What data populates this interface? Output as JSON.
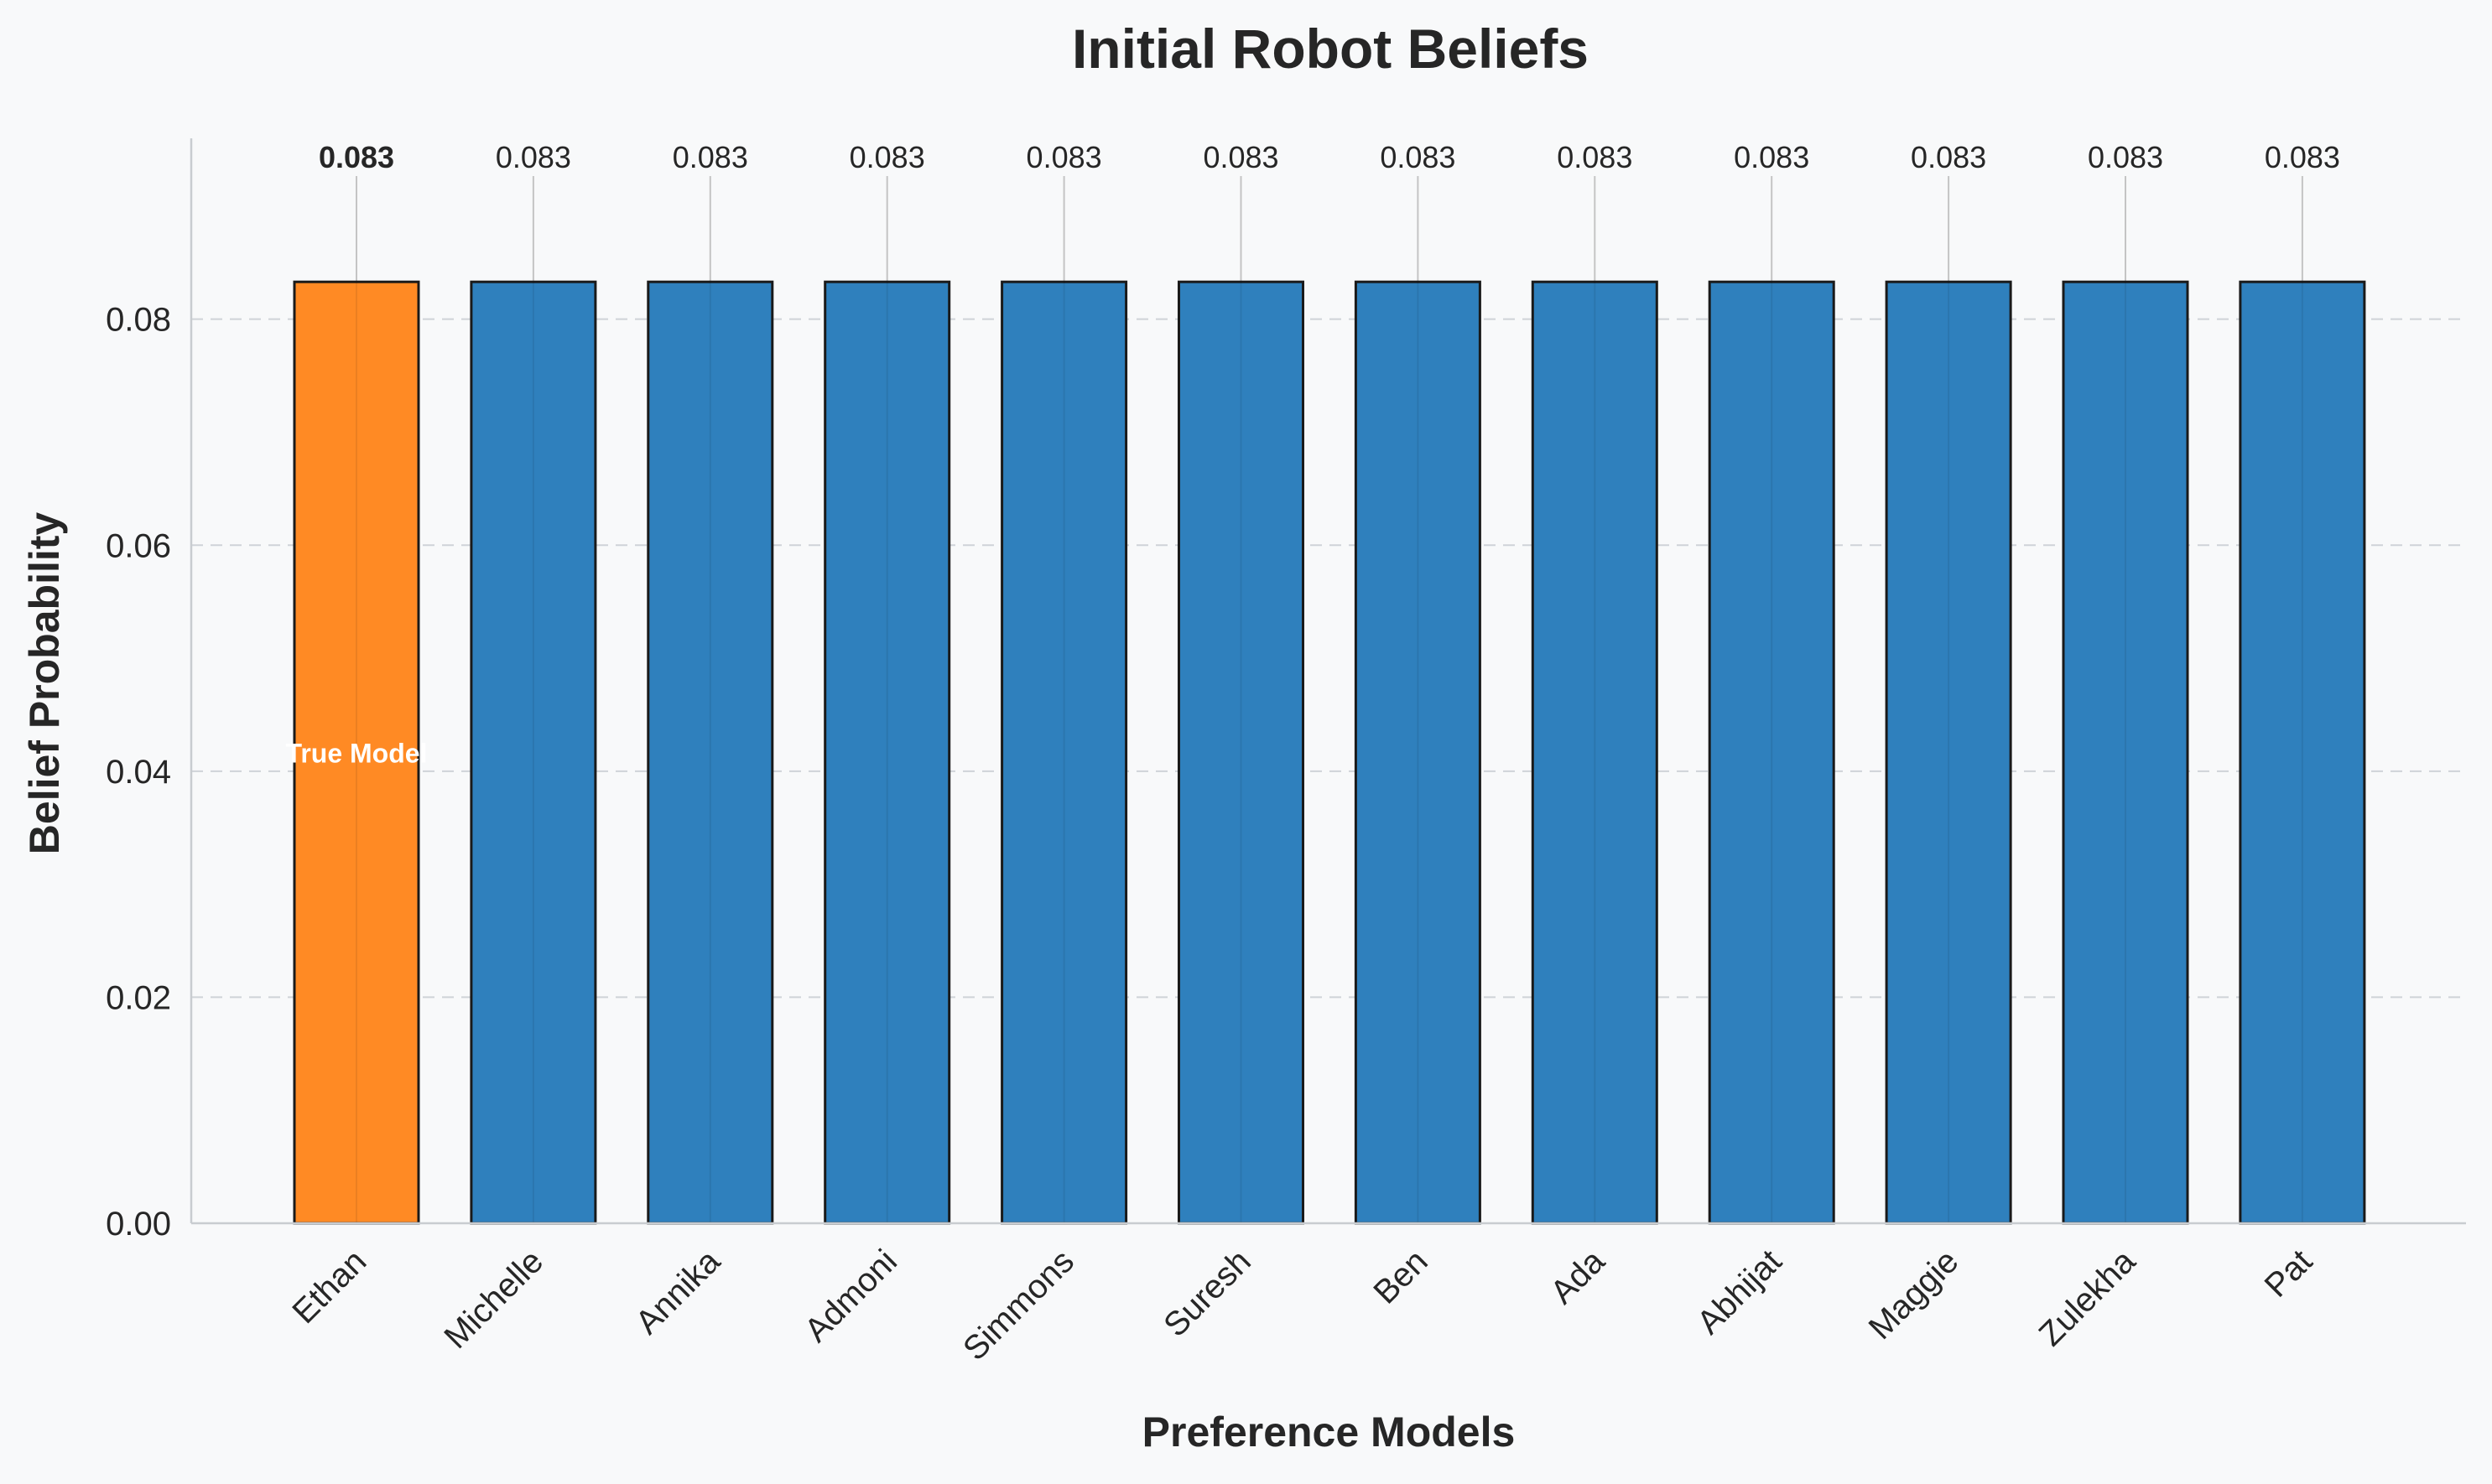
{
  "chart_data": {
    "type": "bar",
    "title": "Initial Robot Beliefs",
    "xlabel": "Preference Models",
    "ylabel": "Belief Probability",
    "categories": [
      "Ethan",
      "Michelle",
      "Annika",
      "Admoni",
      "Simmons",
      "Suresh",
      "Ben",
      "Ada",
      "Abhijat",
      "Maggie",
      "Zulekha",
      "Pat"
    ],
    "values": [
      0.0833,
      0.0833,
      0.0833,
      0.0833,
      0.0833,
      0.0833,
      0.0833,
      0.0833,
      0.0833,
      0.0833,
      0.0833,
      0.0833
    ],
    "value_labels": [
      "0.083",
      "0.083",
      "0.083",
      "0.083",
      "0.083",
      "0.083",
      "0.083",
      "0.083",
      "0.083",
      "0.083",
      "0.083",
      "0.083"
    ],
    "highlight_index": 0,
    "highlight_annotation": "True Model",
    "ylim": [
      0,
      0.096
    ],
    "yticks": [
      0.0,
      0.02,
      0.04,
      0.06,
      0.08
    ],
    "ytick_labels": [
      "0.00",
      "0.02",
      "0.04",
      "0.06",
      "0.08"
    ],
    "grid": "y-dashed",
    "colors": {
      "default_bar": "#2f80bd",
      "highlight_bar": "#ff8a24",
      "background": "#f8f9fa"
    }
  }
}
